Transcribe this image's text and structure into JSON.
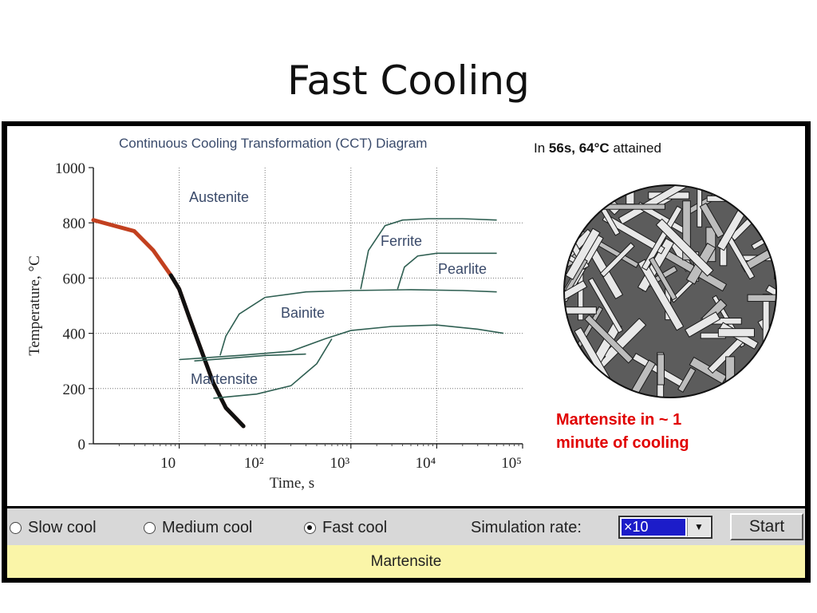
{
  "slide": {
    "title": "Fast Cooling"
  },
  "caption": {
    "prefix": "In ",
    "time": "56s, 64°C",
    "suffix": " attained"
  },
  "note": {
    "line1": "Martensite in ~ 1",
    "line2": "minute of cooling"
  },
  "chart_data": {
    "type": "line",
    "title": "Continuous Cooling Transformation (CCT) Diagram",
    "xlabel": "Time, s",
    "ylabel": "Temperature, °C",
    "x_scale": "log",
    "xlim": [
      1,
      100000
    ],
    "ylim": [
      0,
      1000
    ],
    "xticks": [
      "10",
      "10²",
      "10³",
      "10⁴",
      "10⁵"
    ],
    "yticks": [
      "0",
      "200",
      "400",
      "600",
      "800",
      "1000"
    ],
    "grid": true,
    "region_labels": [
      "Austenite",
      "Ferrite",
      "Pearlite",
      "Bainite",
      "Martensite"
    ],
    "series": [
      {
        "x": [
          1,
          3,
          5,
          8,
          10,
          13,
          18,
          25,
          35,
          56
        ],
        "y": [
          810,
          770,
          700,
          610,
          560,
          460,
          340,
          220,
          130,
          64
        ],
        "color": "#b0301c"
      },
      {
        "x": [
          1300,
          1600,
          2500,
          4000,
          8000,
          20000,
          50000
        ],
        "y": [
          560,
          700,
          790,
          810,
          815,
          815,
          810
        ]
      },
      {
        "x": [
          3500,
          4200,
          6000,
          10000,
          20000,
          50000
        ],
        "y": [
          560,
          640,
          680,
          690,
          690,
          690
        ]
      },
      {
        "x": [
          30,
          35,
          50,
          100,
          300,
          1000,
          5000,
          20000,
          50000
        ],
        "y": [
          320,
          390,
          470,
          530,
          550,
          555,
          558,
          555,
          550
        ]
      },
      {
        "x": [
          10,
          50,
          200,
          500,
          1000,
          3000,
          10000,
          30000,
          60000
        ],
        "y": [
          305,
          320,
          335,
          380,
          410,
          425,
          430,
          415,
          400
        ]
      },
      {
        "x": [
          25,
          80,
          200,
          400,
          600
        ],
        "y": [
          165,
          180,
          210,
          290,
          380
        ]
      },
      {
        "x": [
          15,
          40,
          100,
          300
        ],
        "y": [
          300,
          310,
          320,
          325
        ]
      }
    ]
  },
  "controls": {
    "options": [
      {
        "label": "Slow cool",
        "selected": false
      },
      {
        "label": "Medium cool",
        "selected": false
      },
      {
        "label": "Fast cool",
        "selected": true
      }
    ],
    "rate_label": "Simulation rate:",
    "rate_value": "×10",
    "start_label": "Start"
  },
  "status": {
    "text": "Martensite"
  }
}
